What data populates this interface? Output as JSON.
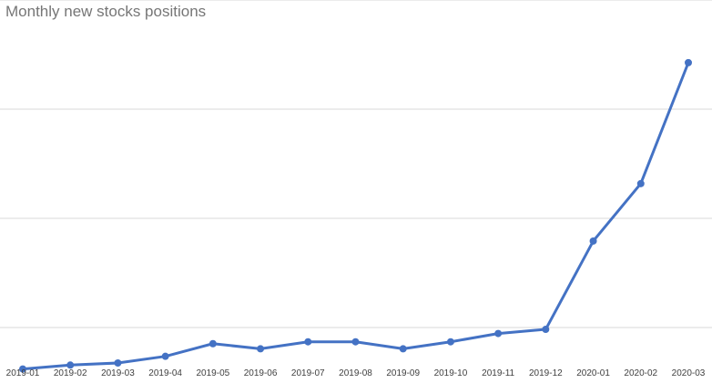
{
  "chart_data": {
    "type": "line",
    "title": "Monthly new stocks positions",
    "xlabel": "",
    "ylabel": "",
    "categories": [
      "2019-01",
      "2019-02",
      "2019-03",
      "2019-04",
      "2019-05",
      "2019-06",
      "2019-07",
      "2019-08",
      "2019-09",
      "2019-10",
      "2019-11",
      "2019-12",
      "2020-01",
      "2020-02",
      "2020-03"
    ],
    "series": [
      {
        "values": [
          12.0,
          15.6,
          17.5,
          23.6,
          35.2,
          30.5,
          36.9,
          36.9,
          30.5,
          36.9,
          44.5,
          48.3,
          129.2,
          181.8,
          292.6
        ]
      }
    ],
    "ylim": [
      0,
      350
    ],
    "yticks": [
      50,
      150,
      250,
      350
    ],
    "grid": true,
    "legend": "none",
    "colors": {
      "line": "#4472c4",
      "grid": "#d9d9d9"
    }
  }
}
